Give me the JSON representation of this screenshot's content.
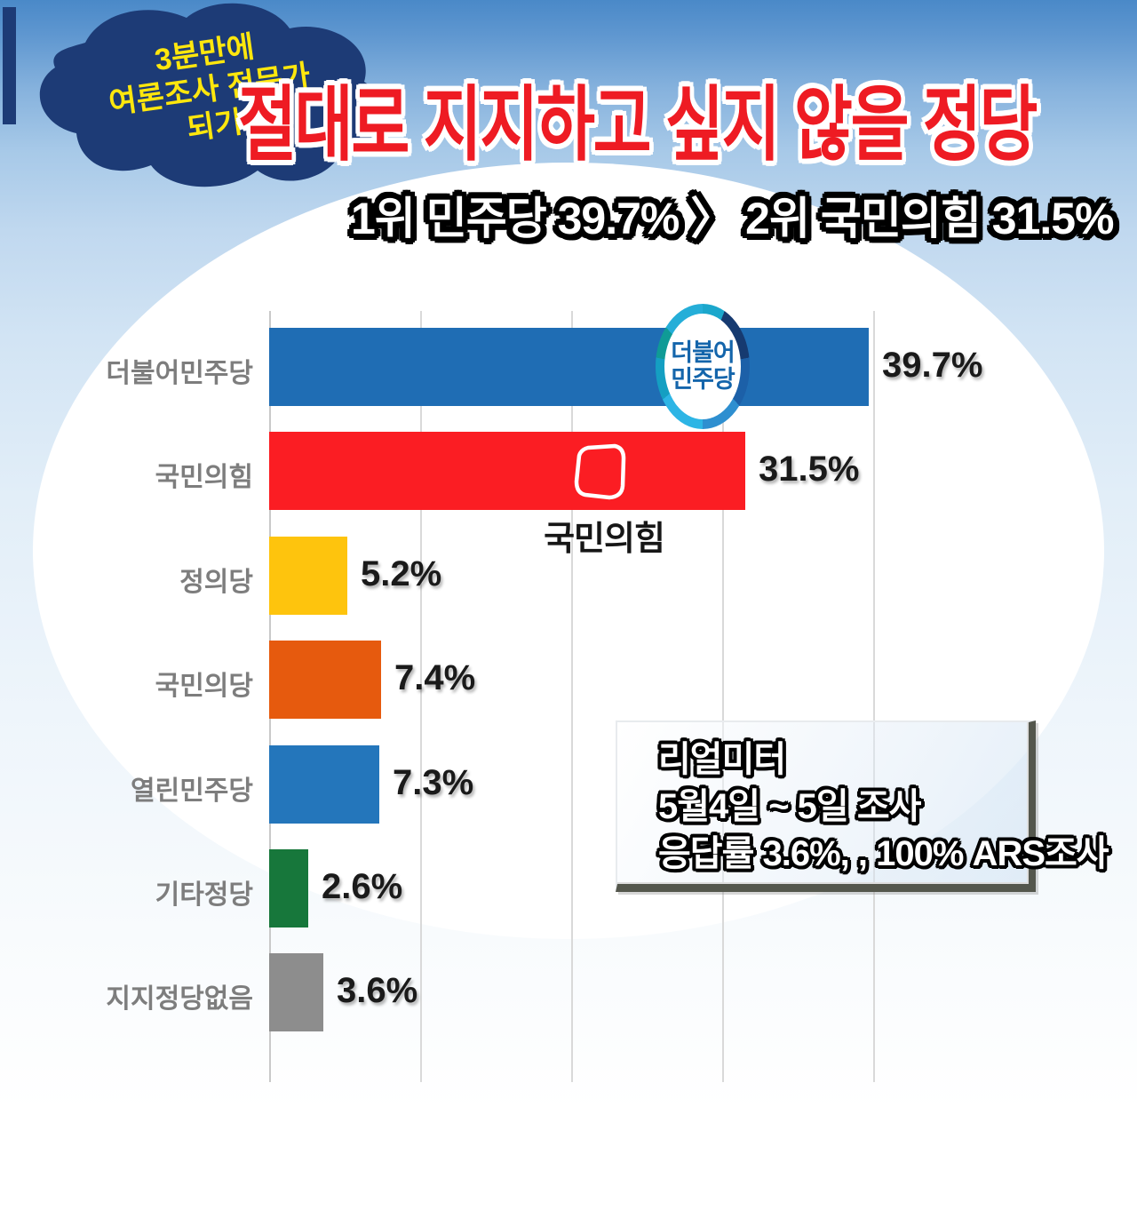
{
  "badge": {
    "line1": "3분만에",
    "line2": "여론조사 전문가",
    "line3": "되기",
    "background_color": "#1d3b76",
    "text_color": "#ffe70d"
  },
  "title": {
    "text": "절대로 지지하고 싶지 않을 정당",
    "color": "#ee1b23"
  },
  "subtitle": {
    "text": "1위 민주당 39.7% 〉 2위 국민의힘 31.5%"
  },
  "chart_data": {
    "type": "bar",
    "orientation": "horizontal",
    "title": "절대로 지지하고 싶지 않을 정당",
    "categories": [
      "더불어민주당",
      "국민의힘",
      "정의당",
      "국민의당",
      "열린민주당",
      "기타정당",
      "지지정당없음"
    ],
    "values": [
      39.7,
      31.5,
      5.2,
      7.4,
      7.3,
      2.6,
      3.6
    ],
    "value_labels": [
      "39.7%",
      "31.5%",
      "5.2%",
      "7.4%",
      "7.3%",
      "2.6%",
      "3.6%"
    ],
    "bar_colors": [
      "#1f6db4",
      "#fb1d23",
      "#fec40d",
      "#e65a0e",
      "#2476bb",
      "#17773b",
      "#8d8d8d"
    ],
    "xlim": [
      0,
      50
    ],
    "gridlines_percent": [
      0,
      10,
      20,
      30,
      40
    ],
    "grid": "vertical light gray",
    "legend": "none",
    "unit": "%"
  },
  "logos": {
    "minjoo_line1": "더불어",
    "minjoo_line2": "민주당",
    "ppp_caption": "국민의힘"
  },
  "infobox": {
    "line1": "리얼미터",
    "line2": "5월4일 ~ 5일 조사",
    "line3": "응답률 3.6%, , 100% ARS조사"
  }
}
